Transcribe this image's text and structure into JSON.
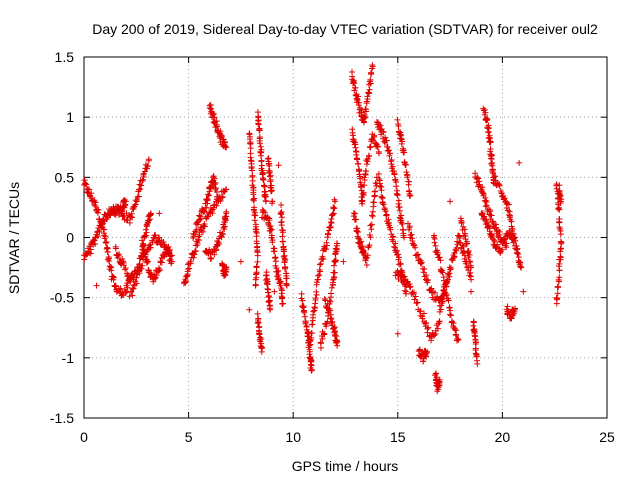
{
  "chart_data": {
    "type": "scatter",
    "title": "Day 200 of 2019, Sidereal Day-to-day VTEC variation (SDTVAR) for receiver oul2",
    "xlabel": "GPS time / hours",
    "ylabel": "SDTVAR / TECUs",
    "xlim": [
      0,
      25
    ],
    "ylim": [
      -1.5,
      1.5
    ],
    "xticks": [
      "0",
      "5",
      "10",
      "15",
      "20",
      "25"
    ],
    "yticks": [
      "-1.5",
      "-1",
      "-0.5",
      "0",
      "0.5",
      "1",
      "1.5"
    ],
    "grid": true,
    "marker": "+",
    "colors": {
      "series": "#e00000"
    },
    "tracks": [
      [
        [
          0.0,
          0.45
        ],
        [
          0.3,
          0.35
        ],
        [
          0.6,
          0.25
        ],
        [
          0.9,
          0.1
        ],
        [
          1.1,
          -0.1
        ],
        [
          1.3,
          -0.3
        ],
        [
          1.6,
          -0.45
        ],
        [
          2.0,
          -0.45
        ],
        [
          2.3,
          -0.3
        ]
      ],
      [
        [
          0.0,
          -0.15
        ],
        [
          0.3,
          -0.1
        ],
        [
          0.6,
          0.0
        ],
        [
          0.9,
          0.15
        ],
        [
          1.2,
          0.2
        ],
        [
          1.5,
          0.22
        ],
        [
          1.8,
          0.25
        ],
        [
          2.0,
          0.3
        ]
      ],
      [
        [
          1.4,
          0.25
        ],
        [
          1.8,
          0.2
        ],
        [
          2.2,
          0.15
        ],
        [
          2.5,
          0.3
        ],
        [
          2.8,
          0.5
        ],
        [
          3.1,
          0.65
        ]
      ],
      [
        [
          1.5,
          -0.1
        ],
        [
          1.8,
          -0.2
        ],
        [
          2.2,
          -0.35
        ],
        [
          2.5,
          -0.3
        ],
        [
          2.8,
          -0.1
        ],
        [
          3.0,
          0.1
        ],
        [
          3.2,
          0.2
        ]
      ],
      [
        [
          2.2,
          -0.5
        ],
        [
          2.6,
          -0.3
        ],
        [
          3.0,
          -0.1
        ],
        [
          3.4,
          0.0
        ],
        [
          3.8,
          -0.05
        ],
        [
          4.2,
          -0.15
        ]
      ],
      [
        [
          2.8,
          -0.05
        ],
        [
          3.0,
          -0.2
        ],
        [
          3.3,
          -0.35
        ],
        [
          3.6,
          -0.25
        ],
        [
          3.9,
          -0.1
        ],
        [
          4.2,
          -0.2
        ]
      ],
      [
        [
          4.8,
          -0.4
        ],
        [
          5.0,
          -0.25
        ],
        [
          5.3,
          -0.1
        ],
        [
          5.6,
          0.05
        ],
        [
          6.0,
          0.2
        ],
        [
          6.4,
          0.3
        ],
        [
          6.8,
          0.4
        ]
      ],
      [
        [
          5.2,
          0.0
        ],
        [
          5.5,
          0.15
        ],
        [
          5.8,
          0.25
        ],
        [
          6.0,
          0.4
        ],
        [
          6.2,
          0.5
        ],
        [
          6.4,
          0.3
        ]
      ],
      [
        [
          5.8,
          -0.1
        ],
        [
          6.1,
          -0.15
        ],
        [
          6.4,
          -0.05
        ],
        [
          6.7,
          0.1
        ],
        [
          6.8,
          0.2
        ]
      ],
      [
        [
          6.0,
          1.1
        ],
        [
          6.2,
          1.0
        ],
        [
          6.4,
          0.9
        ],
        [
          6.6,
          0.8
        ],
        [
          6.8,
          0.75
        ]
      ],
      [
        [
          6.6,
          -0.2
        ],
        [
          6.7,
          -0.3
        ],
        [
          6.8,
          -0.25
        ]
      ],
      [
        [
          7.9,
          0.9
        ],
        [
          8.0,
          0.6
        ],
        [
          8.1,
          0.35
        ],
        [
          8.2,
          0.1
        ],
        [
          8.3,
          -0.15
        ],
        [
          8.2,
          -0.4
        ]
      ],
      [
        [
          8.3,
          1.05
        ],
        [
          8.4,
          0.85
        ],
        [
          8.5,
          0.6
        ],
        [
          8.6,
          0.45
        ],
        [
          8.7,
          0.3
        ]
      ],
      [
        [
          8.5,
          0.2
        ],
        [
          8.8,
          0.15
        ],
        [
          9.0,
          0.0
        ],
        [
          9.2,
          -0.25
        ],
        [
          9.4,
          -0.4
        ],
        [
          9.5,
          -0.55
        ]
      ],
      [
        [
          8.8,
          0.65
        ],
        [
          8.9,
          0.5
        ],
        [
          9.0,
          0.3
        ]
      ],
      [
        [
          8.3,
          -0.65
        ],
        [
          8.4,
          -0.8
        ],
        [
          8.5,
          -0.95
        ]
      ],
      [
        [
          8.7,
          -0.3
        ],
        [
          8.8,
          -0.45
        ],
        [
          8.9,
          -0.6
        ]
      ],
      [
        [
          9.4,
          0.25
        ],
        [
          9.5,
          0.0
        ],
        [
          9.6,
          -0.2
        ],
        [
          9.7,
          -0.4
        ]
      ],
      [
        [
          10.4,
          -0.5
        ],
        [
          10.6,
          -0.7
        ],
        [
          10.8,
          -0.9
        ],
        [
          11.0,
          -0.6
        ],
        [
          11.2,
          -0.3
        ],
        [
          11.5,
          -0.1
        ],
        [
          11.8,
          0.1
        ],
        [
          12.0,
          0.3
        ]
      ],
      [
        [
          10.7,
          -0.8
        ],
        [
          10.8,
          -1.0
        ],
        [
          10.9,
          -1.1
        ]
      ],
      [
        [
          11.3,
          -0.9
        ],
        [
          11.6,
          -0.7
        ],
        [
          11.9,
          -0.4
        ],
        [
          12.0,
          -0.2
        ],
        [
          12.1,
          -0.05
        ]
      ],
      [
        [
          11.5,
          -0.5
        ],
        [
          11.8,
          -0.65
        ],
        [
          12.0,
          -0.8
        ],
        [
          12.1,
          -0.9
        ]
      ],
      [
        [
          12.8,
          1.35
        ],
        [
          13.0,
          1.2
        ],
        [
          13.2,
          1.05
        ],
        [
          13.4,
          0.95
        ],
        [
          13.6,
          1.2
        ],
        [
          13.8,
          1.42
        ]
      ],
      [
        [
          12.8,
          0.9
        ],
        [
          13.0,
          0.7
        ],
        [
          13.2,
          0.5
        ],
        [
          13.3,
          0.3
        ],
        [
          13.5,
          0.6
        ],
        [
          13.8,
          0.85
        ],
        [
          14.1,
          0.7
        ]
      ],
      [
        [
          12.9,
          0.2
        ],
        [
          13.1,
          0.0
        ],
        [
          13.3,
          -0.1
        ],
        [
          13.5,
          -0.2
        ],
        [
          13.8,
          0.2
        ],
        [
          14.0,
          0.5
        ]
      ],
      [
        [
          14.0,
          0.95
        ],
        [
          14.3,
          0.85
        ],
        [
          14.6,
          0.7
        ],
        [
          14.9,
          0.45
        ],
        [
          15.1,
          0.2
        ],
        [
          15.3,
          0.0
        ]
      ],
      [
        [
          14.1,
          0.5
        ],
        [
          14.3,
          0.3
        ],
        [
          14.6,
          0.1
        ],
        [
          14.9,
          -0.1
        ],
        [
          15.2,
          -0.3
        ],
        [
          15.4,
          -0.45
        ]
      ],
      [
        [
          15.0,
          0.95
        ],
        [
          15.2,
          0.8
        ],
        [
          15.4,
          0.55
        ],
        [
          15.6,
          0.35
        ]
      ],
      [
        [
          14.9,
          -0.3
        ],
        [
          15.3,
          -0.35
        ],
        [
          15.7,
          -0.45
        ],
        [
          16.2,
          -0.65
        ],
        [
          16.6,
          -0.85
        ],
        [
          17.0,
          -0.7
        ]
      ],
      [
        [
          15.5,
          0.1
        ],
        [
          15.8,
          -0.1
        ],
        [
          16.2,
          -0.25
        ],
        [
          16.6,
          -0.45
        ],
        [
          17.0,
          -0.55
        ],
        [
          17.4,
          -0.35
        ]
      ],
      [
        [
          16.0,
          -0.95
        ],
        [
          16.2,
          -1.0
        ],
        [
          16.4,
          -0.95
        ]
      ],
      [
        [
          16.8,
          -1.15
        ],
        [
          16.9,
          -1.25
        ],
        [
          17.0,
          -1.2
        ]
      ],
      [
        [
          17.0,
          -0.6
        ],
        [
          17.3,
          -0.4
        ],
        [
          17.6,
          -0.2
        ],
        [
          17.9,
          0.0
        ],
        [
          18.2,
          -0.15
        ],
        [
          18.5,
          -0.35
        ]
      ],
      [
        [
          16.7,
          0.0
        ],
        [
          17.0,
          -0.2
        ],
        [
          17.3,
          -0.45
        ],
        [
          17.6,
          -0.7
        ],
        [
          17.9,
          -0.85
        ]
      ],
      [
        [
          18.0,
          0.15
        ],
        [
          18.3,
          -0.05
        ],
        [
          18.5,
          -0.25
        ]
      ],
      [
        [
          18.6,
          -0.7
        ],
        [
          18.7,
          -0.85
        ],
        [
          18.8,
          -1.05
        ]
      ],
      [
        [
          18.7,
          0.5
        ],
        [
          19.0,
          0.4
        ],
        [
          19.3,
          0.25
        ],
        [
          19.6,
          0.1
        ],
        [
          19.9,
          0.0
        ],
        [
          20.2,
          -0.05
        ]
      ],
      [
        [
          19.0,
          0.2
        ],
        [
          19.3,
          0.1
        ],
        [
          19.6,
          -0.05
        ],
        [
          19.9,
          -0.1
        ],
        [
          20.3,
          0.05
        ],
        [
          20.6,
          0.0
        ]
      ],
      [
        [
          19.1,
          1.05
        ],
        [
          19.3,
          0.95
        ],
        [
          19.4,
          0.8
        ],
        [
          19.5,
          0.6
        ],
        [
          19.6,
          0.45
        ]
      ],
      [
        [
          19.6,
          0.5
        ],
        [
          20.0,
          0.35
        ],
        [
          20.3,
          0.25
        ],
        [
          20.5,
          0.0
        ],
        [
          20.7,
          -0.1
        ],
        [
          20.9,
          -0.25
        ]
      ],
      [
        [
          20.2,
          -0.6
        ],
        [
          20.4,
          -0.65
        ],
        [
          20.6,
          -0.6
        ]
      ],
      [
        [
          22.6,
          0.45
        ],
        [
          22.7,
          0.2
        ],
        [
          22.8,
          -0.05
        ],
        [
          22.7,
          -0.3
        ],
        [
          22.6,
          -0.55
        ]
      ],
      [
        [
          22.7,
          0.4
        ],
        [
          22.8,
          0.3
        ]
      ]
    ],
    "scatter": [
      [
        0.6,
        -0.4
      ],
      [
        3.6,
        0.2
      ],
      [
        7.5,
        -0.2
      ],
      [
        9.1,
        -0.45
      ],
      [
        12.4,
        -0.2
      ],
      [
        18.5,
        -0.45
      ],
      [
        20.8,
        0.62
      ],
      [
        17.5,
        0.3
      ],
      [
        9.3,
        0.6
      ],
      [
        15.0,
        -0.8
      ],
      [
        21.0,
        -0.45
      ],
      [
        7.9,
        -0.6
      ]
    ]
  }
}
